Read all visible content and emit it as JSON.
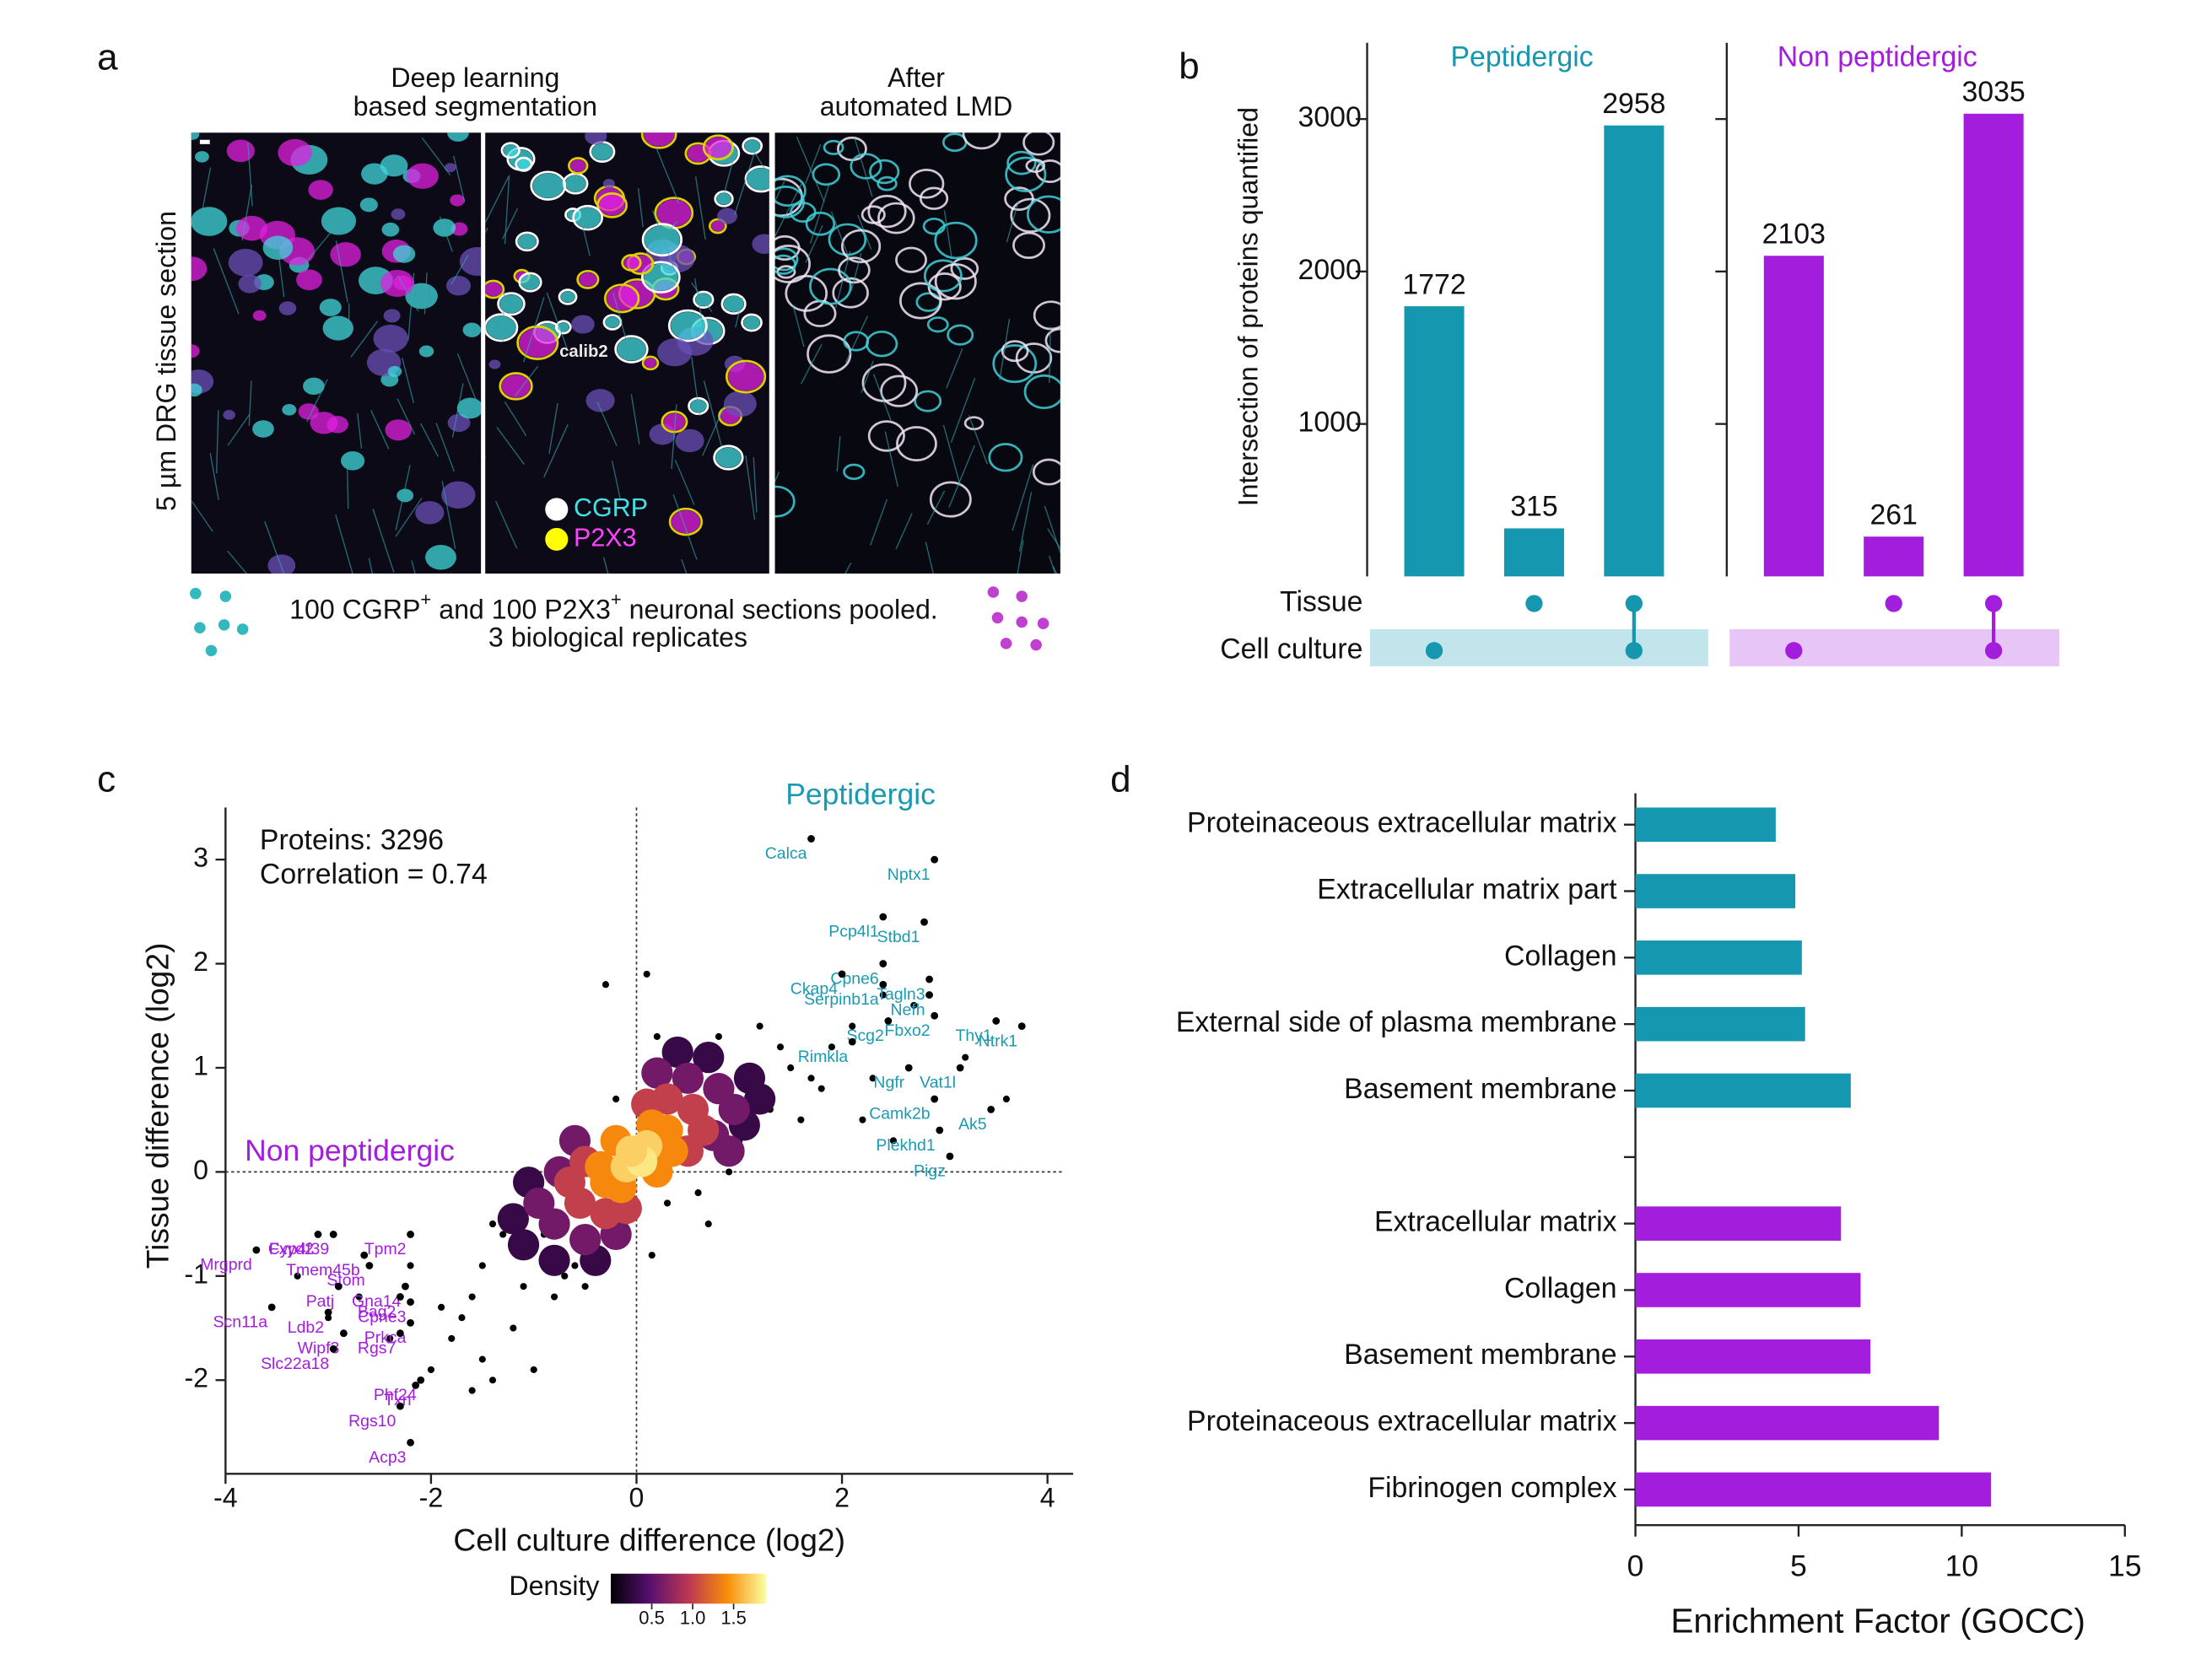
{
  "panel_labels": [
    "a",
    "b",
    "c",
    "d"
  ],
  "panel_a": {
    "titles": [
      [
        "Deep learning",
        "based segmentation"
      ],
      [
        "After",
        "automated LMD"
      ]
    ],
    "side_label": "5 µm DRG tissue section",
    "cell_label": "calib2",
    "legend": [
      {
        "name": "CGRP",
        "color": "#ffffff",
        "text_color": "#44e0e6"
      },
      {
        "name": "P2X3",
        "color": "#ffff00",
        "text_color": "#ff44ff"
      }
    ],
    "caption": [
      "100 CGRP",
      "+",
      " and 100 P2X3",
      "+",
      " neuronal sections pooled."
    ],
    "caption_line2": "3 biological replicates"
  },
  "chart_data": [
    {
      "type": "upset",
      "ylabel": "Intersection of proteins quantified",
      "ylim": [
        0,
        3500
      ],
      "yticks": [
        1000,
        2000,
        3000
      ],
      "sets": [
        "Tissue",
        "Cell culture"
      ],
      "combinations": [
        [
          1
        ],
        [
          0
        ],
        [
          0,
          1
        ]
      ],
      "series": [
        {
          "name": "Peptidergic",
          "color": "#1597b0",
          "values": [
            1772,
            315,
            2958
          ]
        },
        {
          "name": "Non peptidergic",
          "color": "#a21ddc",
          "values": [
            2103,
            261,
            3035
          ]
        }
      ]
    },
    {
      "type": "scatter",
      "xlabel": "Cell culture difference (log2)",
      "ylabel": "Tissue difference (log2)",
      "xlim": [
        -4,
        4.25
      ],
      "ylim": [
        -2.9,
        3.5
      ],
      "xticks": [
        -4,
        -2,
        0,
        2,
        4
      ],
      "yticks": [
        -2,
        -1,
        0,
        1,
        2,
        3
      ],
      "annotations": [
        "Proteins: 3296",
        "Correlation = 0.74"
      ],
      "series": [
        {
          "name": "Peptidergic",
          "color": "#1a9ab2",
          "labels": [
            "Calca",
            "Nptx1",
            "Pcp4l1",
            "Stbd1",
            "Cpne6",
            "Ckap4",
            "Tagln3",
            "Serpinb1a",
            "Nefh",
            "Thy1",
            "Scg2",
            "Fbxo2",
            "Ntrk1",
            "Rimkla",
            "Ngfr",
            "Vat1l",
            "Camk2b",
            "Ak5",
            "Plekhd1",
            "Pigz"
          ],
          "x": [
            1.7,
            2.9,
            2.4,
            2.8,
            2.4,
            2.0,
            2.85,
            2.4,
            2.85,
            3.5,
            2.45,
            2.9,
            3.75,
            2.1,
            2.65,
            3.15,
            2.9,
            3.45,
            2.95,
            3.05
          ],
          "y": [
            3.2,
            3.0,
            2.45,
            2.4,
            2.0,
            1.9,
            1.85,
            1.8,
            1.7,
            1.45,
            1.45,
            1.5,
            1.4,
            1.25,
            1.0,
            1.0,
            0.7,
            0.6,
            0.4,
            0.15
          ]
        },
        {
          "name": "Non peptidergic",
          "color": "#a21ddc",
          "labels": [
            "Fxyd2",
            "Cyp4f39",
            "Tpm2",
            "Tmem45b",
            "Mrgprd",
            "Stom",
            "Gna14",
            "Patj",
            "Bag2",
            "Cpne3",
            "Scn11a",
            "Ldb2",
            "Prkca",
            "Wipf3",
            "Rgs7",
            "Slc22a18",
            "Phf24",
            "Txn",
            "Rgs10",
            "Acp3"
          ],
          "x": [
            -3.1,
            -2.95,
            -2.2,
            -2.65,
            -3.7,
            -2.6,
            -2.25,
            -2.9,
            -2.3,
            -2.2,
            -3.55,
            -3.0,
            -2.2,
            -2.85,
            -2.3,
            -2.95,
            -2.1,
            -2.15,
            -2.3,
            -2.2
          ],
          "y": [
            -0.6,
            -0.6,
            -0.6,
            -0.8,
            -0.75,
            -0.9,
            -1.1,
            -1.1,
            -1.2,
            -1.25,
            -1.3,
            -1.35,
            -1.45,
            -1.55,
            -1.55,
            -1.7,
            -2.0,
            -2.05,
            -2.25,
            -2.6
          ]
        }
      ],
      "points": {
        "color": "#000000",
        "x": [
          -0.4,
          0.5,
          -0.6,
          0.3,
          1.0,
          -1.0,
          -1.3,
          0.8,
          1.3,
          -1.5,
          1.5,
          -0.2,
          0.6,
          -0.8,
          1.2,
          -1.7,
          1.8,
          -1.1,
          0.9,
          -0.7,
          2.1,
          1.6,
          -1.9,
          -2.4,
          -2.0,
          -1.4,
          1.1,
          0.2,
          -0.3,
          2.3,
          1.9,
          -1.6,
          0.7,
          -0.9,
          1.4,
          -1.2,
          2.5,
          3.2,
          2.2,
          -0.5,
          0.4,
          -2.2,
          -1.8,
          1.7,
          -3.3,
          -2.7,
          2.7,
          -1.0,
          0.1,
          -1.5,
          -0.15,
          0.15,
          -1.4,
          -1.6,
          2.4,
          3.6,
          -3.0,
          -0.6
        ],
        "y": [
          -0.6,
          0.9,
          -0.9,
          -0.3,
          0.3,
          -0.3,
          -0.6,
          1.3,
          0.6,
          -0.9,
          1.0,
          0.7,
          -0.2,
          -1.2,
          1.4,
          -1.4,
          0.8,
          -1.1,
          0.0,
          -1.0,
          1.4,
          0.5,
          -1.3,
          -1.6,
          -1.9,
          -0.5,
          1.0,
          1.3,
          1.8,
          0.9,
          1.2,
          -1.2,
          -0.5,
          -0.6,
          1.2,
          -1.5,
          0.3,
          1.1,
          0.5,
          -1.1,
          1.1,
          -0.9,
          -1.6,
          0.9,
          -1.0,
          -1.2,
          1.6,
          -1.9,
          1.9,
          -1.8,
          -0.2,
          -0.8,
          -2.0,
          -2.1,
          1.7,
          0.7,
          -1.4,
          0.1
        ]
      },
      "density_points": {
        "x": [
          1.1,
          -1.1,
          1.05,
          -1.05,
          0.4,
          -0.4,
          1.2,
          -1.2,
          0.7,
          -0.8,
          0.8,
          -0.8,
          0.75,
          -0.75,
          0.2,
          -0.2,
          0.95,
          -0.95,
          0.5,
          -0.5,
          0.9,
          -0.6,
          0.55,
          -0.55,
          0.5,
          -0.5,
          0.1,
          -0.1,
          0.65,
          -0.65,
          0.3,
          -0.3,
          0.3,
          -0.3,
          0.2,
          -0.2,
          0.35,
          -0.35,
          0.15,
          -0.15,
          0.0,
          0.1,
          -0.1,
          0.05,
          -0.05
        ],
        "y": [
          0.9,
          -0.7,
          0.45,
          -0.1,
          1.15,
          -0.85,
          0.7,
          -0.45,
          1.1,
          -0.85,
          0.8,
          -0.5,
          0.35,
          0.0,
          0.95,
          -0.6,
          0.6,
          -0.3,
          0.9,
          -0.65,
          0.2,
          0.3,
          0.6,
          -0.3,
          0.2,
          0.1,
          0.65,
          -0.35,
          0.4,
          -0.1,
          0.7,
          -0.4,
          0.4,
          -0.1,
          0.0,
          0.3,
          0.2,
          0.05,
          0.45,
          -0.15,
          0.15,
          0.25,
          0.05,
          0.1,
          0.2
        ],
        "density": [
          0.3,
          0.3,
          0.3,
          0.3,
          0.3,
          0.3,
          0.3,
          0.3,
          0.3,
          0.3,
          0.6,
          0.6,
          0.6,
          0.6,
          0.6,
          0.6,
          0.6,
          0.6,
          0.6,
          0.6,
          0.6,
          0.6,
          1.0,
          1.0,
          1.0,
          1.0,
          1.0,
          1.0,
          1.0,
          1.0,
          1.0,
          1.0,
          1.4,
          1.4,
          1.4,
          1.4,
          1.4,
          1.4,
          1.4,
          1.4,
          1.8,
          1.7,
          1.7,
          1.8,
          1.7
        ]
      },
      "colorbar": {
        "label": "Density",
        "clim": [
          0,
          1.9
        ],
        "ticks": [
          0.5,
          {
            "value": 1,
            "label": "1.0"
          },
          1.5
        ]
      }
    },
    {
      "type": "hbar",
      "xlabel": "Enrichment Factor (GOCC)",
      "xlim": [
        0,
        15
      ],
      "xticks": [
        0,
        5,
        10,
        15
      ],
      "categories": [
        "Proteinaceous extracellular matrix",
        "Extracellular matrix part",
        "Collagen",
        "External side of plasma membrane",
        "Basement membrane",
        null,
        "Extracellular matrix",
        "Collagen",
        "Basement membrane",
        "Proteinaceous extracellular matrix",
        "Fibrinogen complex"
      ],
      "values": [
        4.3,
        4.9,
        5.1,
        5.2,
        6.6,
        null,
        6.3,
        6.9,
        7.2,
        9.3,
        10.9
      ],
      "colors": [
        "#1597b0",
        "#1597b0",
        "#1597b0",
        "#1597b0",
        "#1597b0",
        null,
        "#a21ddc",
        "#a21ddc",
        "#a21ddc",
        "#a21ddc",
        "#a21ddc"
      ]
    }
  ]
}
